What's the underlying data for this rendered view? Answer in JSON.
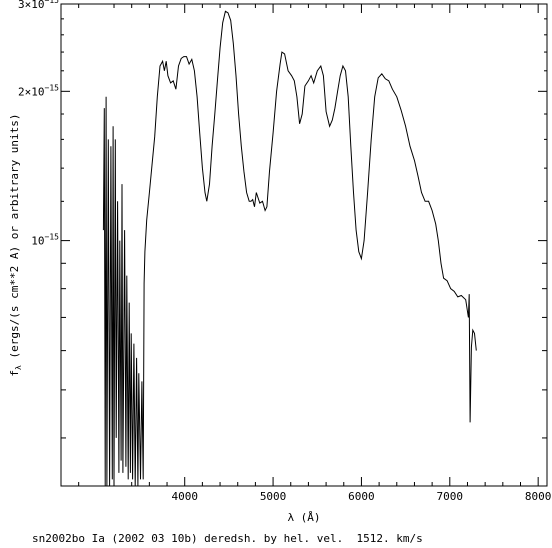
{
  "chart_data": {
    "type": "line",
    "title": "",
    "xlabel": "λ (Å)",
    "ylabel": "f_λ (ergs/(s cm**2 Å) or arbitrary units)",
    "ylabel_main": "f",
    "ylabel_sub": "λ",
    "ylabel_rest": " (ergs/(s cm**2 A) or arbitrary units)",
    "y_scale": "log",
    "xlim": [
      2600,
      8100
    ],
    "ylim": [
      3.2e-16,
      3e-15
    ],
    "grid": false,
    "x_ticks": [
      {
        "value": 4000,
        "label": "4000"
      },
      {
        "value": 5000,
        "label": "5000"
      },
      {
        "value": 6000,
        "label": "6000"
      },
      {
        "value": 7000,
        "label": "7000"
      },
      {
        "value": 8000,
        "label": "8000"
      }
    ],
    "y_ticks_labeled": [
      {
        "value": 1e-15,
        "mantissa": "",
        "exponent": "−15",
        "label": "10−15"
      },
      {
        "value": 2e-15,
        "mantissa": "2×",
        "exponent": "−15",
        "label": "2×10−15"
      },
      {
        "value": 3e-15,
        "mantissa": "3×",
        "exponent": "−15",
        "label": "3×10−15"
      }
    ],
    "y_ticks_minor": [
      4e-16,
      5e-16,
      6e-16,
      7e-16,
      8e-16,
      9e-16
    ],
    "series": [
      {
        "color": "#000000",
        "points": [
          [
            3080,
            1.05e-15
          ],
          [
            3090,
            1.85e-15
          ],
          [
            3100,
            3.2e-16
          ],
          [
            3110,
            1.95e-15
          ],
          [
            3120,
            3.2e-16
          ],
          [
            3135,
            1.6e-15
          ],
          [
            3150,
            3.2e-16
          ],
          [
            3165,
            1.55e-15
          ],
          [
            3180,
            3.3e-16
          ],
          [
            3190,
            1.7e-15
          ],
          [
            3200,
            3.2e-16
          ],
          [
            3215,
            1.6e-15
          ],
          [
            3225,
            4e-16
          ],
          [
            3240,
            1.2e-15
          ],
          [
            3255,
            3.4e-16
          ],
          [
            3265,
            1e-15
          ],
          [
            3280,
            3.6e-16
          ],
          [
            3290,
            1.3e-15
          ],
          [
            3300,
            3.4e-16
          ],
          [
            3320,
            1.05e-15
          ],
          [
            3335,
            3.5e-16
          ],
          [
            3345,
            8.5e-16
          ],
          [
            3360,
            3.3e-16
          ],
          [
            3372,
            7.5e-16
          ],
          [
            3385,
            3.4e-16
          ],
          [
            3395,
            6.5e-16
          ],
          [
            3410,
            3.3e-16
          ],
          [
            3425,
            6.2e-16
          ],
          [
            3440,
            3.2e-16
          ],
          [
            3455,
            5.8e-16
          ],
          [
            3470,
            3.2e-16
          ],
          [
            3480,
            5.4e-16
          ],
          [
            3500,
            3.3e-16
          ],
          [
            3515,
            5.2e-16
          ],
          [
            3530,
            3.3e-16
          ],
          [
            3540,
            8.2e-16
          ],
          [
            3550,
            9.5e-16
          ],
          [
            3570,
            1.1e-15
          ],
          [
            3600,
            1.25e-15
          ],
          [
            3630,
            1.42e-15
          ],
          [
            3660,
            1.62e-15
          ],
          [
            3690,
            1.95e-15
          ],
          [
            3720,
            2.25e-15
          ],
          [
            3750,
            2.3e-15
          ],
          [
            3770,
            2.2e-15
          ],
          [
            3790,
            2.3e-15
          ],
          [
            3810,
            2.15e-15
          ],
          [
            3840,
            2.08e-15
          ],
          [
            3870,
            2.1e-15
          ],
          [
            3900,
            2.02e-15
          ],
          [
            3930,
            2.25e-15
          ],
          [
            3960,
            2.33e-15
          ],
          [
            3990,
            2.35e-15
          ],
          [
            4020,
            2.35e-15
          ],
          [
            4050,
            2.27e-15
          ],
          [
            4080,
            2.32e-15
          ],
          [
            4110,
            2.2e-15
          ],
          [
            4140,
            1.95e-15
          ],
          [
            4170,
            1.65e-15
          ],
          [
            4200,
            1.4e-15
          ],
          [
            4230,
            1.25e-15
          ],
          [
            4250,
            1.2e-15
          ],
          [
            4280,
            1.3e-15
          ],
          [
            4310,
            1.55e-15
          ],
          [
            4340,
            1.8e-15
          ],
          [
            4370,
            2.1e-15
          ],
          [
            4400,
            2.45e-15
          ],
          [
            4430,
            2.75e-15
          ],
          [
            4460,
            2.9e-15
          ],
          [
            4490,
            2.88e-15
          ],
          [
            4520,
            2.78e-15
          ],
          [
            4550,
            2.5e-15
          ],
          [
            4580,
            2.15e-15
          ],
          [
            4610,
            1.8e-15
          ],
          [
            4640,
            1.55e-15
          ],
          [
            4670,
            1.38e-15
          ],
          [
            4700,
            1.25e-15
          ],
          [
            4730,
            1.2e-15
          ],
          [
            4750,
            1.2e-15
          ],
          [
            4770,
            1.21e-15
          ],
          [
            4790,
            1.17e-15
          ],
          [
            4810,
            1.25e-15
          ],
          [
            4850,
            1.19e-15
          ],
          [
            4880,
            1.2e-15
          ],
          [
            4910,
            1.15e-15
          ],
          [
            4930,
            1.17e-15
          ],
          [
            4960,
            1.38e-15
          ],
          [
            5000,
            1.65e-15
          ],
          [
            5040,
            2e-15
          ],
          [
            5080,
            2.27e-15
          ],
          [
            5100,
            2.4e-15
          ],
          [
            5130,
            2.38e-15
          ],
          [
            5170,
            2.2e-15
          ],
          [
            5210,
            2.15e-15
          ],
          [
            5240,
            2.1e-15
          ],
          [
            5270,
            1.95e-15
          ],
          [
            5300,
            1.72e-15
          ],
          [
            5330,
            1.8e-15
          ],
          [
            5360,
            2.05e-15
          ],
          [
            5400,
            2.1e-15
          ],
          [
            5430,
            2.15e-15
          ],
          [
            5460,
            2.08e-15
          ],
          [
            5500,
            2.2e-15
          ],
          [
            5540,
            2.25e-15
          ],
          [
            5570,
            2.15e-15
          ],
          [
            5600,
            1.82e-15
          ],
          [
            5640,
            1.7e-15
          ],
          [
            5670,
            1.75e-15
          ],
          [
            5700,
            1.85e-15
          ],
          [
            5730,
            2e-15
          ],
          [
            5760,
            2.15e-15
          ],
          [
            5790,
            2.25e-15
          ],
          [
            5820,
            2.2e-15
          ],
          [
            5850,
            1.95e-15
          ],
          [
            5880,
            1.55e-15
          ],
          [
            5910,
            1.25e-15
          ],
          [
            5940,
            1.05e-15
          ],
          [
            5970,
            9.5e-16
          ],
          [
            6000,
            9.2e-16
          ],
          [
            6030,
            1e-15
          ],
          [
            6070,
            1.25e-15
          ],
          [
            6110,
            1.6e-15
          ],
          [
            6150,
            1.95e-15
          ],
          [
            6190,
            2.13e-15
          ],
          [
            6230,
            2.17e-15
          ],
          [
            6270,
            2.12e-15
          ],
          [
            6310,
            2.1e-15
          ],
          [
            6350,
            2.02e-15
          ],
          [
            6400,
            1.95e-15
          ],
          [
            6450,
            1.83e-15
          ],
          [
            6500,
            1.7e-15
          ],
          [
            6550,
            1.55e-15
          ],
          [
            6600,
            1.45e-15
          ],
          [
            6640,
            1.35e-15
          ],
          [
            6680,
            1.25e-15
          ],
          [
            6720,
            1.2e-15
          ],
          [
            6760,
            1.2e-15
          ],
          [
            6800,
            1.15e-15
          ],
          [
            6840,
            1.08e-15
          ],
          [
            6870,
            1e-15
          ],
          [
            6900,
            9e-16
          ],
          [
            6930,
            8.4e-16
          ],
          [
            6970,
            8.3e-16
          ],
          [
            7010,
            8e-16
          ],
          [
            7050,
            7.9e-16
          ],
          [
            7090,
            7.7e-16
          ],
          [
            7130,
            7.75e-16
          ],
          [
            7180,
            7.6e-16
          ],
          [
            7210,
            7e-16
          ],
          [
            7220,
            7.8e-16
          ],
          [
            7230,
            4.3e-16
          ],
          [
            7245,
            6.1e-16
          ],
          [
            7260,
            6.6e-16
          ],
          [
            7280,
            6.5e-16
          ],
          [
            7300,
            6e-16
          ]
        ]
      }
    ],
    "caption": "sn2002bo Ia (2002 03 10b) deredsh. by hel. vel.  1512. km/s"
  }
}
